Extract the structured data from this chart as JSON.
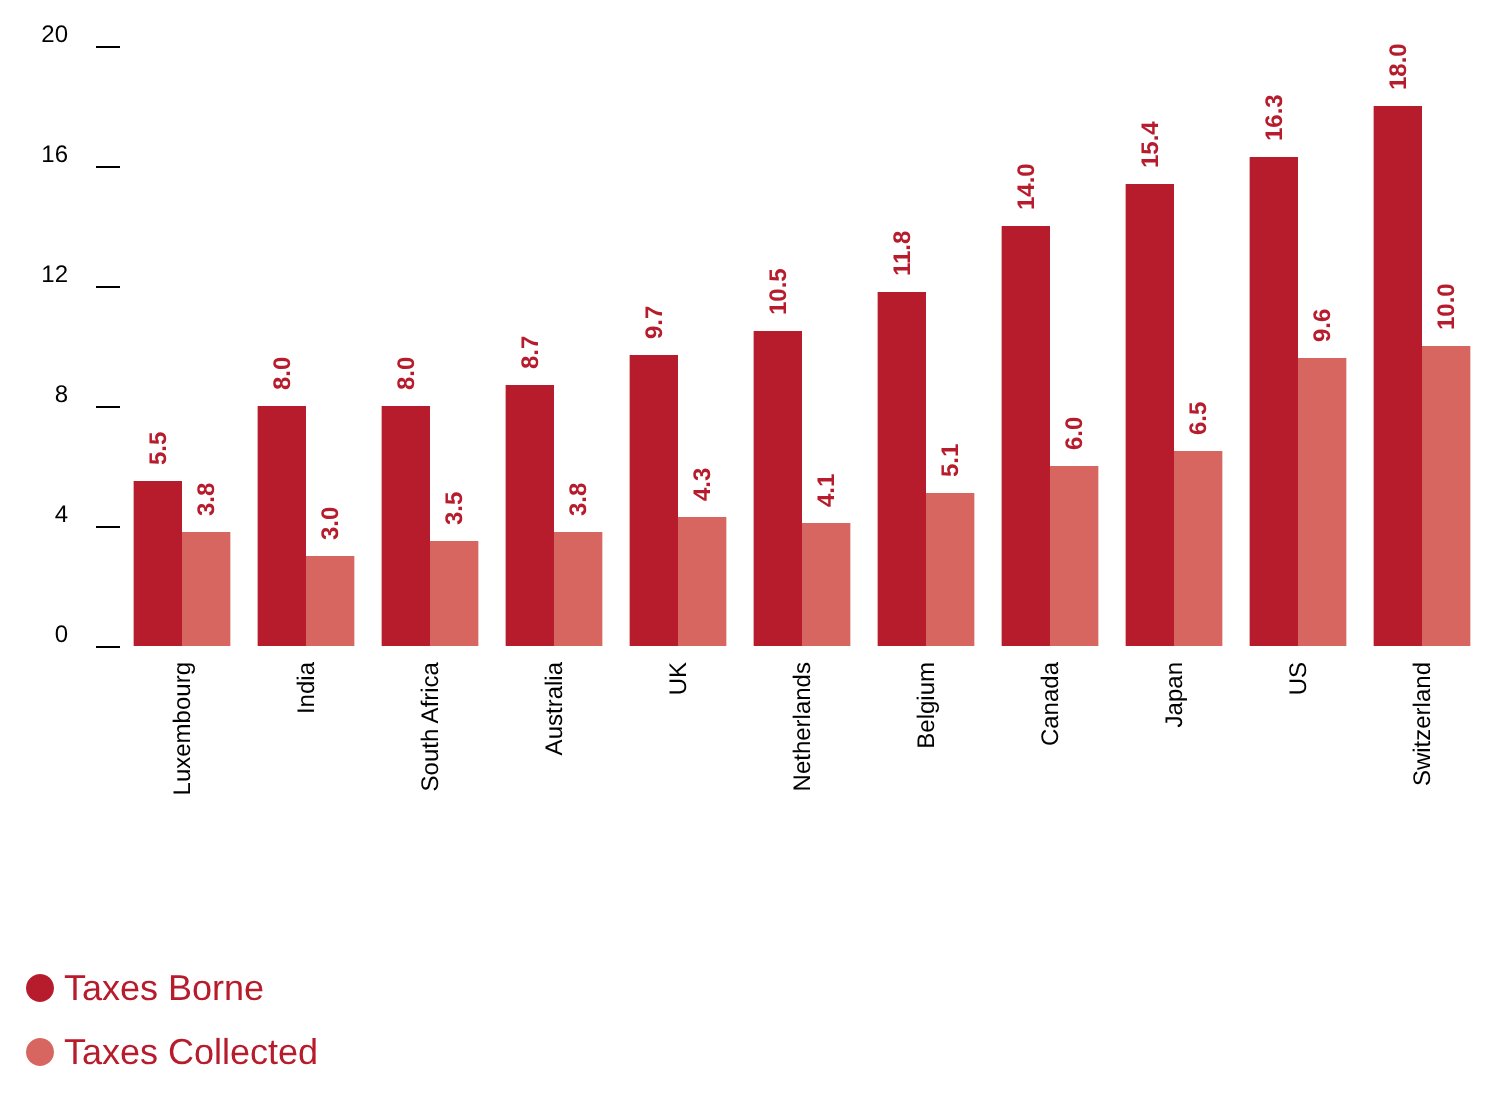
{
  "chart_data": {
    "type": "bar",
    "categories": [
      "Luxembourg",
      "India",
      "South Africa",
      "Australia",
      "UK",
      "Netherlands",
      "Belgium",
      "Canada",
      "Japan",
      "US",
      "Switzerland"
    ],
    "series": [
      {
        "name": "Taxes Borne",
        "color": "#b71c2c",
        "values": [
          5.5,
          8.0,
          8.0,
          8.7,
          9.7,
          10.5,
          11.8,
          14.0,
          15.4,
          16.3,
          18.0
        ],
        "value_labels": [
          "5.5",
          "8.0",
          "8.0",
          "8.7",
          "9.7",
          "10.5",
          "11.8",
          "14.0",
          "15.4",
          "16.3",
          "18.0"
        ]
      },
      {
        "name": "Taxes Collected",
        "color": "#d6665f",
        "values": [
          3.8,
          3.0,
          3.5,
          3.8,
          4.3,
          4.1,
          5.1,
          6.0,
          6.5,
          9.6,
          10.0
        ],
        "value_labels": [
          "3.8",
          "3.0",
          "3.5",
          "3.8",
          "4.3",
          "4.1",
          "5.1",
          "6.0",
          "6.5",
          "9.6",
          "10.0"
        ]
      }
    ],
    "ylim": [
      0,
      20
    ],
    "yticks": [
      0,
      4,
      8,
      12,
      16,
      20
    ],
    "grid": false,
    "legend": "bottom left"
  }
}
